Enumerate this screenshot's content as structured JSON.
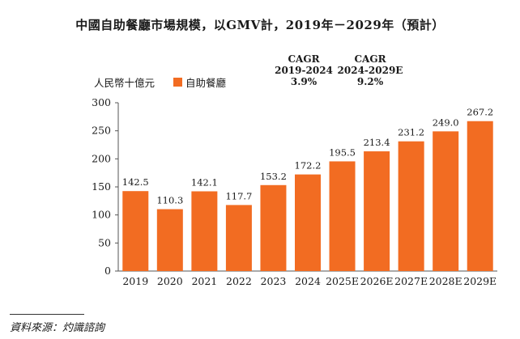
{
  "chart_data": {
    "type": "bar",
    "title": "中國自助餐廳市場規模，以GMV計，2019年－2029年（預計）",
    "ylabel": "人民幣十億元",
    "xlabel": "",
    "legend": [
      "自助餐廳"
    ],
    "categories": [
      "2019",
      "2020",
      "2021",
      "2022",
      "2023",
      "2024",
      "2025E",
      "2026E",
      "2027E",
      "2028E",
      "2029E"
    ],
    "values": [
      142.5,
      110.3,
      142.1,
      117.7,
      153.2,
      172.2,
      195.5,
      213.4,
      231.2,
      249.0,
      267.2
    ],
    "value_labels": [
      "142.5",
      "110.3",
      "142.1",
      "117.7",
      "153.2",
      "172.2",
      "195.5",
      "213.4",
      "231.2",
      "249.0",
      "267.2"
    ],
    "ylim": [
      0,
      300
    ],
    "yticks": [
      0,
      50,
      100,
      150,
      200,
      250,
      300
    ],
    "grid": false,
    "legend_position": "top-left",
    "bar_color": "#f26c22",
    "annotations": [
      {
        "label": "CAGR",
        "period": "2019-2024",
        "value": "3.9%"
      },
      {
        "label": "CAGR",
        "period": "2024-2029E",
        "value": "9.2%"
      }
    ]
  },
  "source": "資料來源：灼識諮詢"
}
